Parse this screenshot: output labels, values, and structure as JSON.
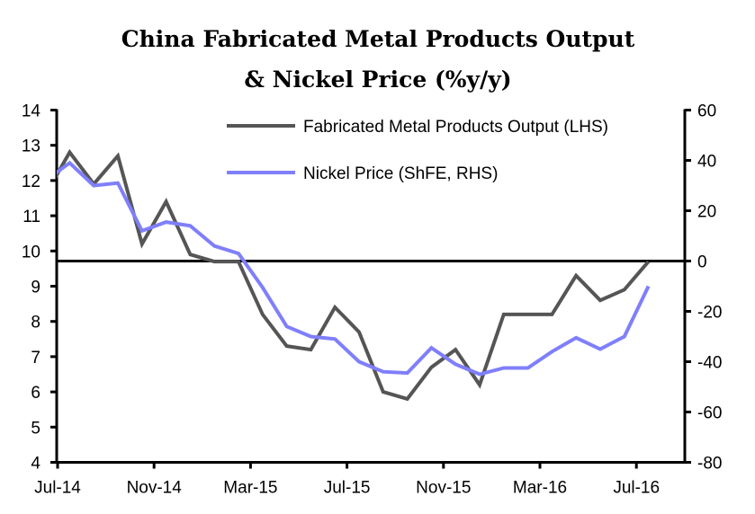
{
  "chart_data": {
    "type": "line",
    "title": [
      "China Fabricated Metal Products Output",
      "& Nickel Price (%y/y)"
    ],
    "x": [
      "Jun-14",
      "Jul-14",
      "Aug-14",
      "Sep-14",
      "Oct-14",
      "Nov-14",
      "Dec-14",
      "Jan-15",
      "Feb-15",
      "Mar-15",
      "Apr-15",
      "May-15",
      "Jun-15",
      "Jul-15",
      "Aug-15",
      "Sep-15",
      "Oct-15",
      "Nov-15",
      "Dec-15",
      "Jan-16",
      "Feb-16",
      "Mar-16",
      "Apr-16",
      "May-16",
      "Jun-16",
      "Jul-16"
    ],
    "x_tick_labels": [
      "Jul-14",
      "Nov-14",
      "Mar-15",
      "Jul-15",
      "Nov-15",
      "Mar-16",
      "Jul-16"
    ],
    "y_left": {
      "range": [
        4,
        14
      ],
      "ticks": [
        "4",
        "5",
        "6",
        "7",
        "8",
        "9",
        "10",
        "11",
        "12",
        "13",
        "14"
      ]
    },
    "y_right": {
      "range": [
        -80,
        60
      ],
      "ticks": [
        "-80",
        "-60",
        "-40",
        "-20",
        "0",
        "20",
        "40",
        "60"
      ]
    },
    "reference_line": {
      "axis": "right",
      "value": 0
    },
    "grid": false,
    "legend_placement": "top-right",
    "series": [
      {
        "name": "Fabricated Metal Products Output (LHS)",
        "axis": "left",
        "color": "#555555",
        "values": [
          11.6,
          12.8,
          11.9,
          12.7,
          10.2,
          11.4,
          9.9,
          9.7,
          9.7,
          8.2,
          7.3,
          7.2,
          8.4,
          7.7,
          6.0,
          5.8,
          6.7,
          7.2,
          6.2,
          8.2,
          8.2,
          8.2,
          9.3,
          8.6,
          8.9,
          9.7
        ]
      },
      {
        "name": "Nickel Price (ShFE, RHS)",
        "axis": "right",
        "color": "#7f7ffc",
        "values": [
          32,
          39,
          30,
          31,
          12,
          15.5,
          14,
          6,
          3,
          -10.5,
          -26,
          -30,
          -31,
          -40,
          -44,
          -44.5,
          -34.5,
          -41,
          -45,
          -42.5,
          -42.5,
          -36,
          -30.5,
          -35,
          -30,
          -10
        ]
      }
    ]
  }
}
